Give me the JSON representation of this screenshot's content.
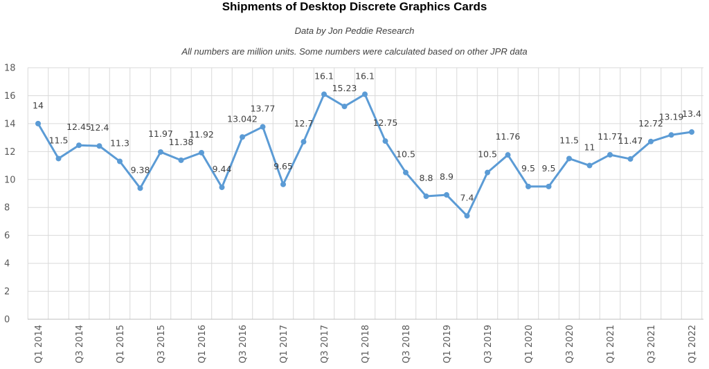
{
  "chart_data": {
    "type": "line",
    "title": "Shipments of Desktop Discrete Graphics Cards",
    "subtitles": [
      "Data by Jon Peddie Research",
      "All numbers are million units. Some numbers were calculated based on other JPR data"
    ],
    "xlabel": "",
    "ylabel": "",
    "ylim": [
      0,
      18
    ],
    "yticks": [
      0,
      2,
      4,
      6,
      8,
      10,
      12,
      14,
      16,
      18
    ],
    "grid": true,
    "legend": "none",
    "line_color": "#5b9bd5",
    "grid_color": "#d9d9d9",
    "x": [
      "Q1 2014",
      "Q2 2014",
      "Q3 2014",
      "Q4 2014",
      "Q1 2015",
      "Q2 2015",
      "Q3 2015",
      "Q4 2015",
      "Q1 2016",
      "Q2 2016",
      "Q3 2016",
      "Q4 2016",
      "Q1 2017",
      "Q2 2017",
      "Q3 2017",
      "Q4 2017",
      "Q1 2018",
      "Q2 2018",
      "Q3 2018",
      "Q4 2018",
      "Q1 2019",
      "Q2 2019",
      "Q3 2019",
      "Q4 2019",
      "Q1 2020",
      "Q2 2020",
      "Q3 2020",
      "Q4 2020",
      "Q1 2021",
      "Q2 2021",
      "Q3 2021",
      "Q4 2021",
      "Q1 2022"
    ],
    "x_tick_labels_shown": [
      "Q1 2014",
      "",
      "Q3 2014",
      "",
      "Q1 2015",
      "",
      "Q3 2015",
      "",
      "Q1 2016",
      "",
      "Q3 2016",
      "",
      "Q1 2017",
      "",
      "Q3 2017",
      "",
      "Q1 2018",
      "",
      "Q3 2018",
      "",
      "Q1 2019",
      "",
      "Q3 2019",
      "",
      "Q1 2020",
      "",
      "Q3 2020",
      "",
      "Q1 2021",
      "",
      "Q3 2021",
      "",
      "Q1 2022"
    ],
    "series": [
      {
        "values": [
          14,
          11.5,
          12.45,
          12.4,
          11.3,
          9.38,
          11.97,
          11.38,
          11.92,
          9.44,
          13.042,
          13.77,
          9.65,
          12.7,
          16.1,
          15.23,
          16.1,
          12.75,
          10.5,
          8.8,
          8.9,
          7.4,
          10.5,
          11.76,
          9.5,
          9.5,
          11.5,
          11,
          11.77,
          11.47,
          12.72,
          13.19,
          13.4
        ],
        "data_labels": [
          "14",
          "11.5",
          "12.45",
          "12.4",
          "11.3",
          "9.38",
          "11.97",
          "11.38",
          "11.92",
          "9.44",
          "13.042",
          "13.77",
          "9.65",
          "12.7",
          "16.1",
          "15.23",
          "16.1",
          "12.75",
          "10.5",
          "8.8",
          "8.9",
          "7.4",
          "10.5",
          "11.76",
          "9.5",
          "9.5",
          "11.5",
          "11",
          "11.77",
          "11.47",
          "12.72",
          "13.19",
          "13.4"
        ]
      }
    ]
  }
}
